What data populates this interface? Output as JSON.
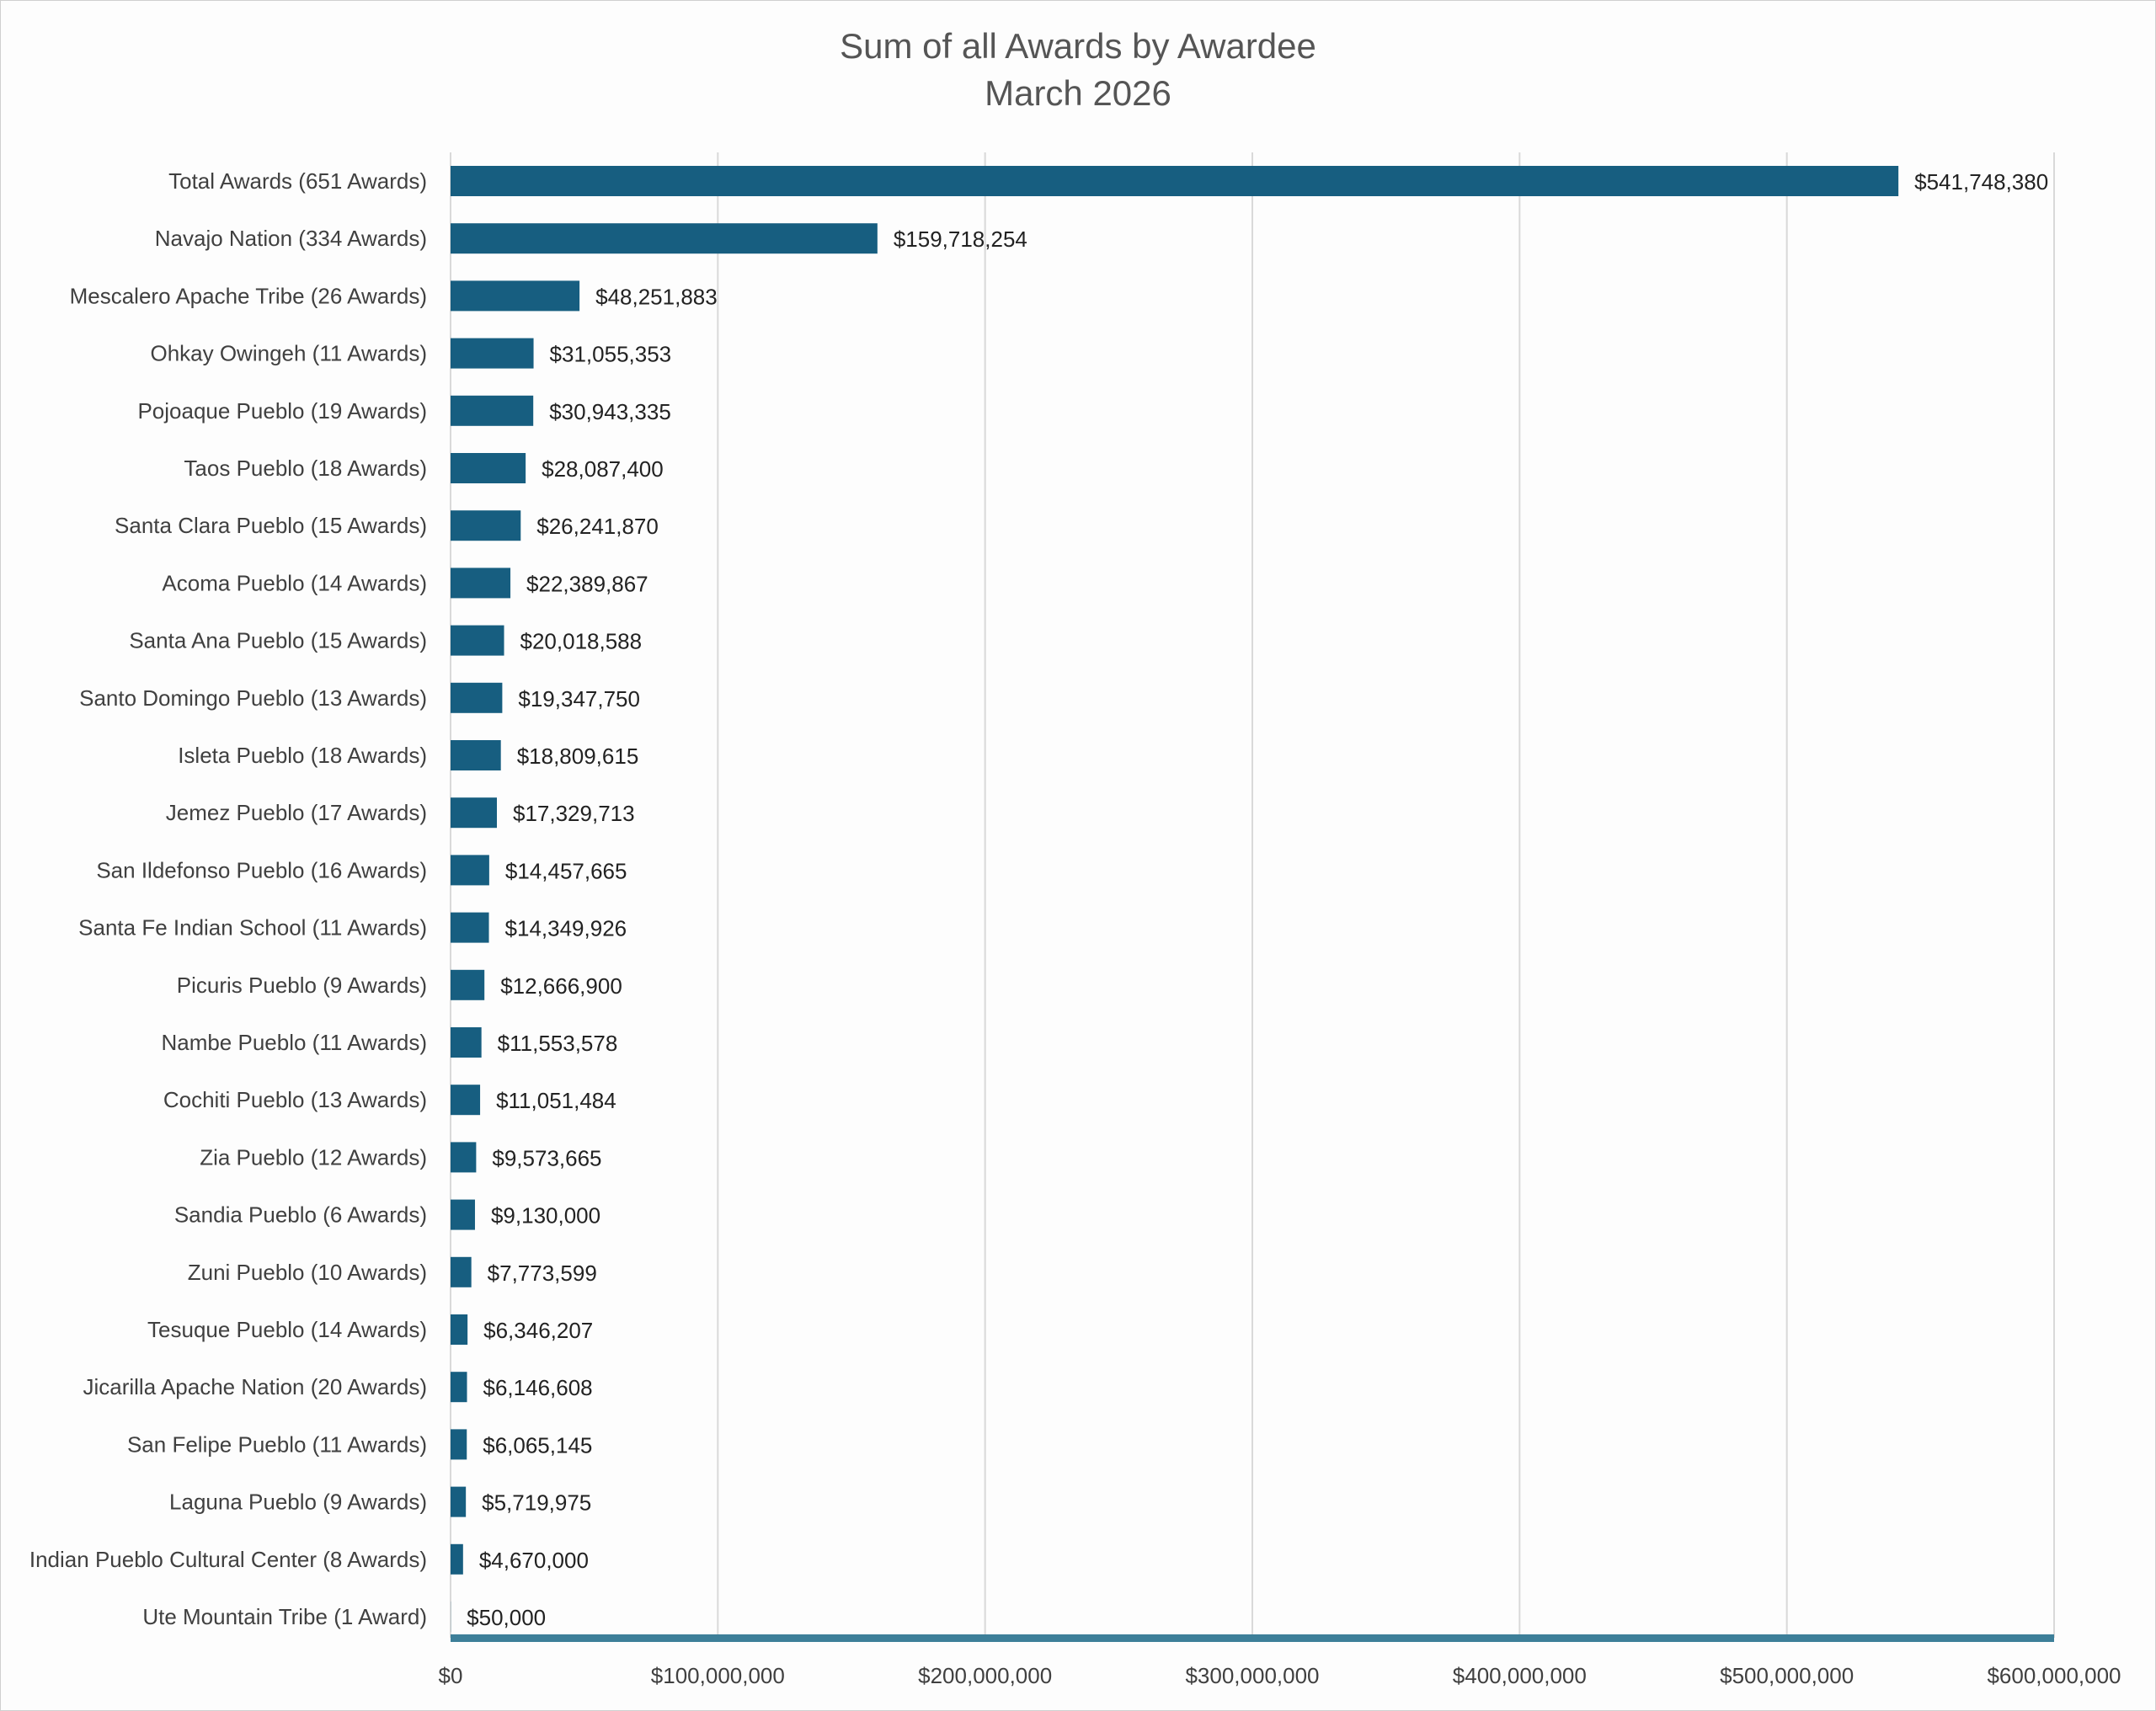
{
  "chart_data": {
    "type": "bar",
    "orientation": "horizontal",
    "title": "Sum of all Awards by Awardee",
    "subtitle": "March 2026",
    "xlabel": "",
    "ylabel": "",
    "xlim": [
      0,
      600000000
    ],
    "x_ticks": [
      0,
      100000000,
      200000000,
      300000000,
      400000000,
      500000000,
      600000000
    ],
    "x_tick_labels": [
      "$0",
      "$100,000,000",
      "$200,000,000",
      "$300,000,000",
      "$400,000,000",
      "$500,000,000",
      "$600,000,000"
    ],
    "grid": "vertical",
    "legend": "none",
    "bar_color": "#175e80",
    "axis_color": "#3d7f99",
    "categories": [
      "Total Awards (651 Awards)",
      "Navajo Nation (334 Awards)",
      "Mescalero Apache Tribe (26 Awards)",
      "Ohkay Owingeh (11 Awards)",
      "Pojoaque Pueblo (19 Awards)",
      "Taos Pueblo (18 Awards)",
      "Santa Clara Pueblo (15 Awards)",
      "Acoma Pueblo (14 Awards)",
      "Santa Ana Pueblo (15 Awards)",
      "Santo Domingo Pueblo (13 Awards)",
      "Isleta Pueblo (18 Awards)",
      "Jemez Pueblo (17 Awards)",
      "San Ildefonso Pueblo (16 Awards)",
      "Santa Fe Indian School (11 Awards)",
      "Picuris Pueblo (9 Awards)",
      "Nambe Pueblo (11 Awards)",
      "Cochiti Pueblo (13 Awards)",
      "Zia Pueblo (12 Awards)",
      "Sandia Pueblo (6 Awards)",
      "Zuni Pueblo (10 Awards)",
      "Tesuque Pueblo (14 Awards)",
      "Jicarilla Apache Nation (20 Awards)",
      "San Felipe Pueblo (11 Awards)",
      "Laguna Pueblo (9 Awards)",
      "Indian Pueblo Cultural Center (8 Awards)",
      "Ute Mountain Tribe (1 Award)"
    ],
    "values": [
      541748380,
      159718254,
      48251883,
      31055353,
      30943335,
      28087400,
      26241870,
      22389867,
      20018588,
      19347750,
      18809615,
      17329713,
      14457665,
      14349926,
      12666900,
      11553578,
      11051484,
      9573665,
      9130000,
      7773599,
      6346207,
      6146608,
      6065145,
      5719975,
      4670000,
      50000
    ],
    "value_labels": [
      "$541,748,380",
      "$159,718,254",
      "$48,251,883",
      "$31,055,353",
      "$30,943,335",
      "$28,087,400",
      "$26,241,870",
      "$22,389,867",
      "$20,018,588",
      "$19,347,750",
      "$18,809,615",
      "$17,329,713",
      "$14,457,665",
      "$14,349,926",
      "$12,666,900",
      "$11,553,578",
      "$11,051,484",
      "$9,573,665",
      "$9,130,000",
      "$7,773,599",
      "$6,346,207",
      "$6,146,608",
      "$6,065,145",
      "$5,719,975",
      "$4,670,000",
      "$50,000"
    ]
  }
}
